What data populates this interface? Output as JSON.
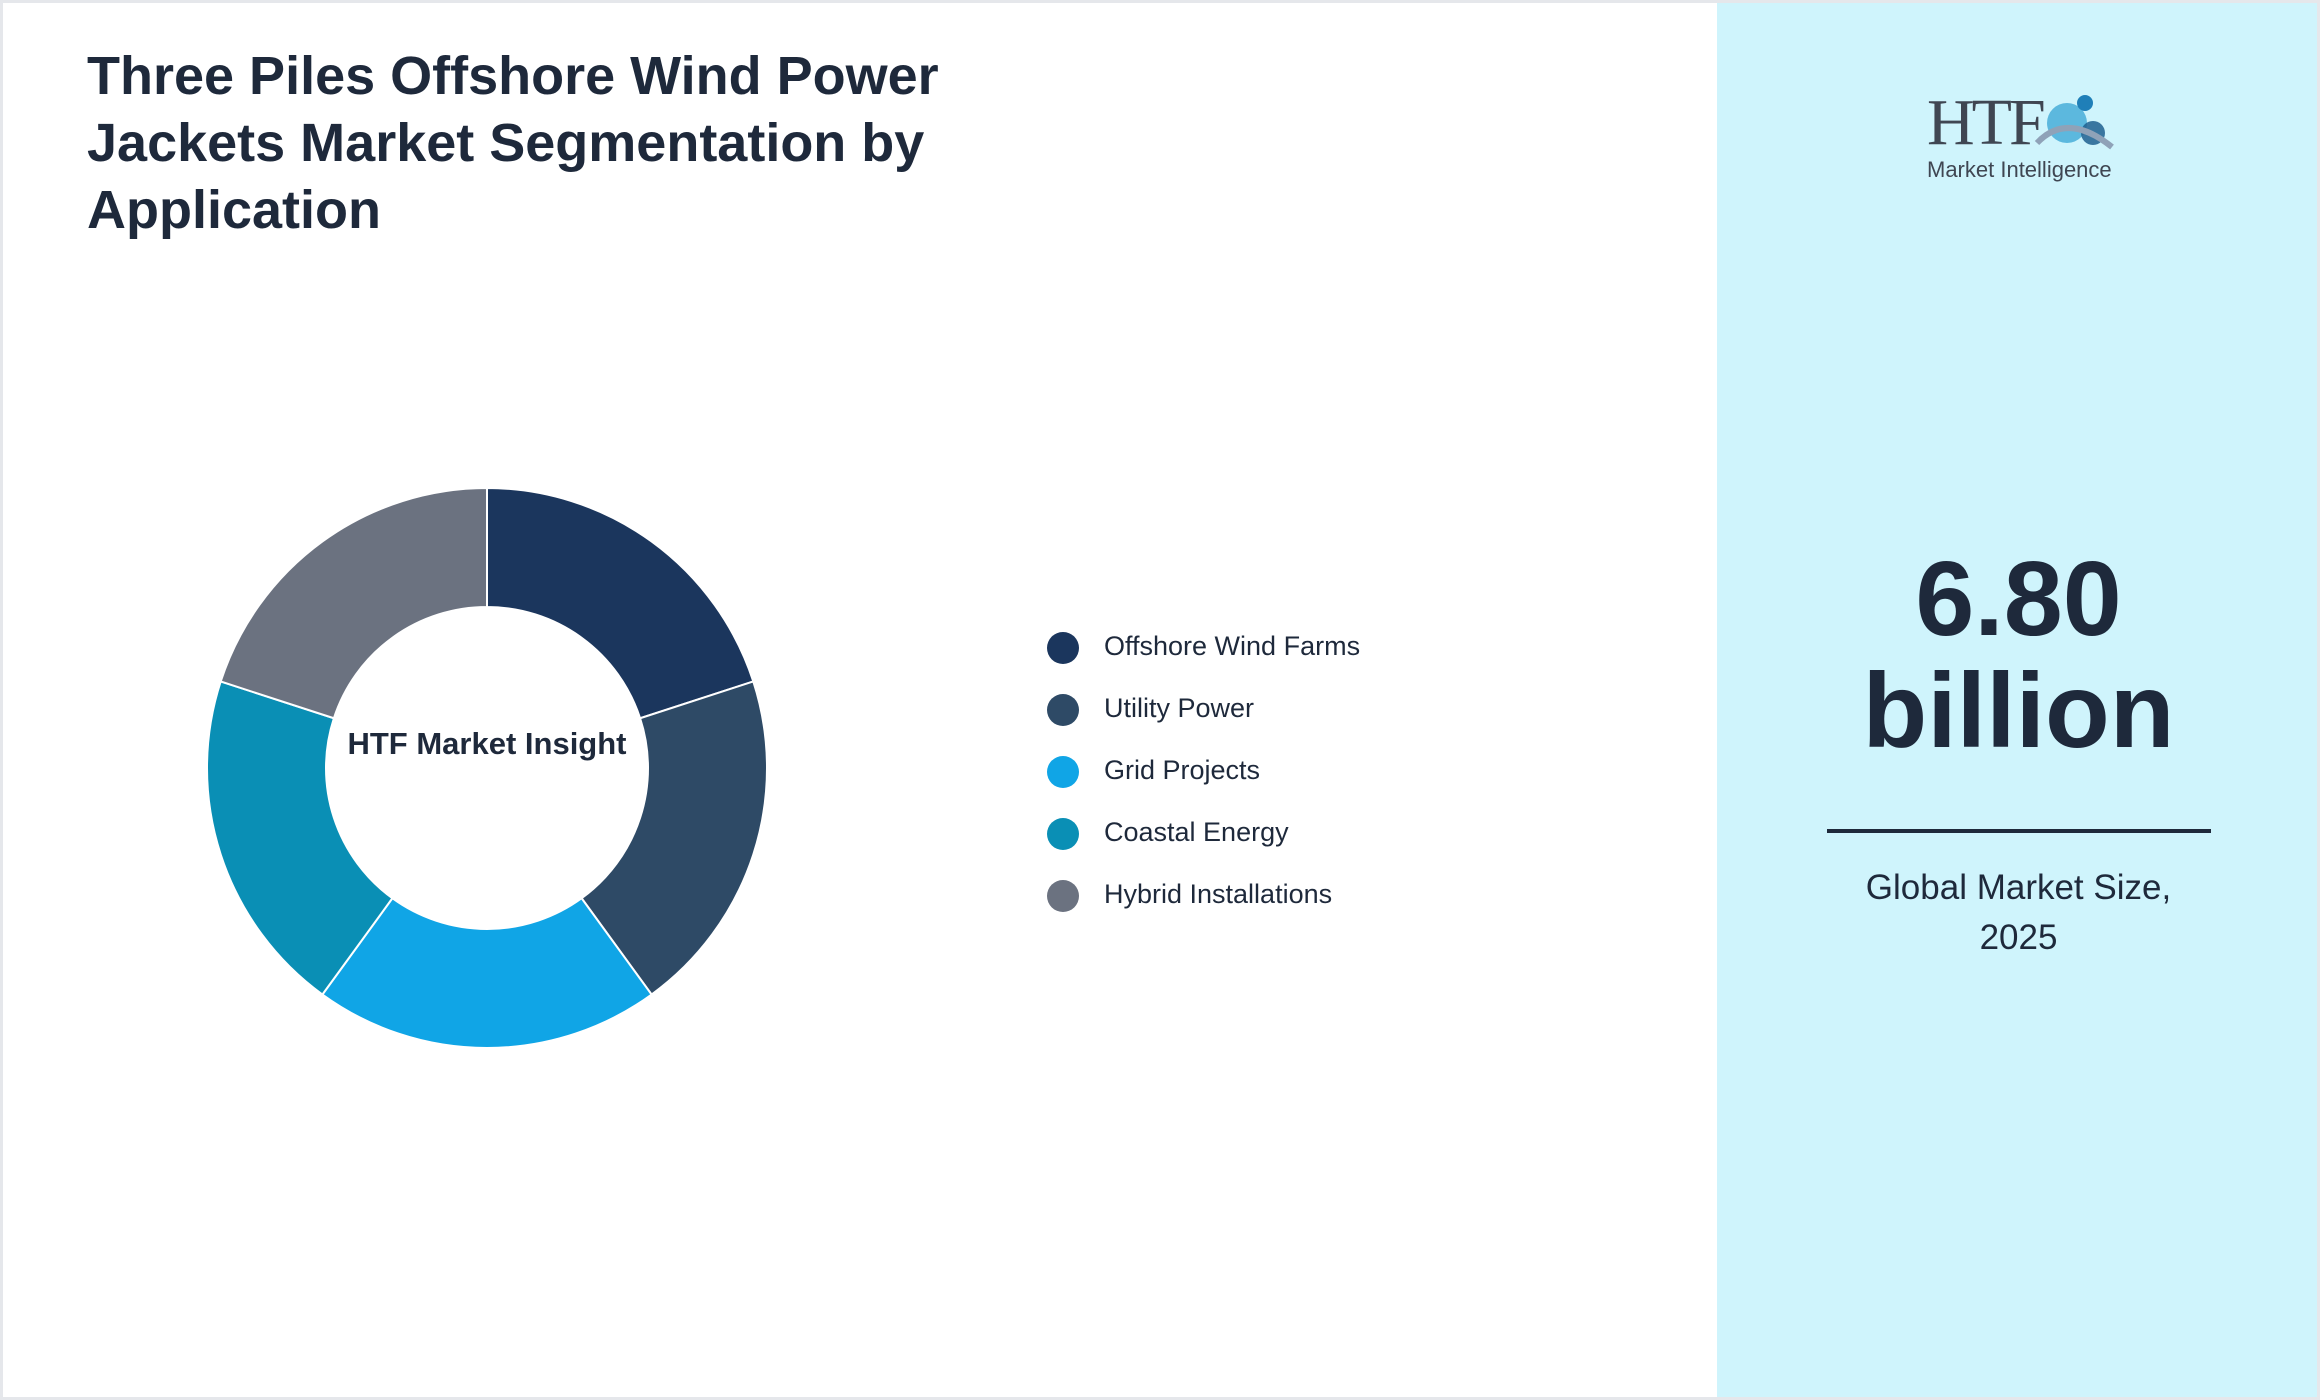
{
  "chart_data": {
    "type": "pie",
    "title": "Three Piles Offshore Wind Power Jackets Market Segmentation by Application",
    "center_label": "HTF Market Insight",
    "categories": [
      "Offshore Wind Farms",
      "Utility Power",
      "Grid Projects",
      "Coastal Energy",
      "Hybrid Installations"
    ],
    "values": [
      20,
      20,
      20,
      20,
      20
    ],
    "colors": [
      "#1b365d",
      "#2e4a66",
      "#10a5e6",
      "#0a8fb5",
      "#6b7280"
    ],
    "legend": "right"
  },
  "sidebar": {
    "logo_title": "HTF",
    "logo_subtitle": "Market Intelligence",
    "value": "6.80 billion",
    "caption": "Global Market Size, 2025"
  }
}
